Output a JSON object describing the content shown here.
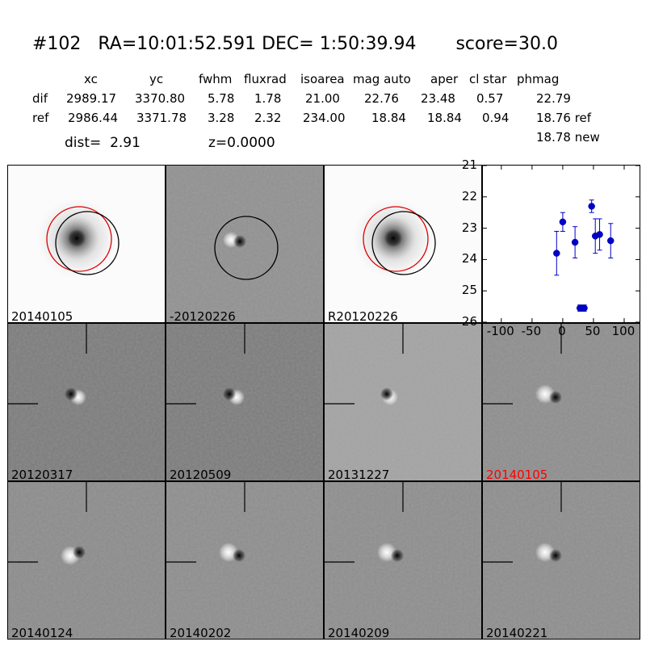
{
  "header": {
    "title": "#102   RA=10:01:52.591 DEC= 1:50:39.94       score=30.0"
  },
  "table": {
    "columns": [
      "xc",
      "yc",
      "fwhm",
      "fluxrad",
      "isoarea",
      "mag auto",
      "aper",
      "cl star",
      "phmag"
    ],
    "rows": [
      {
        "name": "dif",
        "values": [
          "2989.17",
          "3370.80",
          "5.78",
          "1.78",
          "21.00",
          "22.76",
          "23.48",
          "0.57",
          "22.79"
        ]
      },
      {
        "name": "ref",
        "values": [
          "2986.44",
          "3371.78",
          "3.28",
          "2.32",
          "234.00",
          "18.84",
          "18.84",
          "0.94",
          "18.76 ref"
        ]
      }
    ],
    "extra_phmag": "18.78 new"
  },
  "dist_text": "dist=  2.91",
  "z_text": "z=0.0000",
  "tiles": [
    {
      "label": "20140105",
      "style": "ref",
      "color": "#000000"
    },
    {
      "label": "-20120226",
      "style": "diff_circle",
      "color": "#000000"
    },
    {
      "label": "R20120226",
      "style": "ref",
      "color": "#000000"
    },
    {
      "label": "20120317",
      "style": "diff_dark",
      "color": "#000000"
    },
    {
      "label": "20120509",
      "style": "diff_dark",
      "color": "#000000"
    },
    {
      "label": "20131227",
      "style": "diff_light",
      "color": "#000000"
    },
    {
      "label": "20140105",
      "style": "diff_pos",
      "color": "#ff0000"
    },
    {
      "label": "20140124",
      "style": "diff_noisy",
      "color": "#000000"
    },
    {
      "label": "20140202",
      "style": "diff_pos",
      "color": "#000000"
    },
    {
      "label": "20140209",
      "style": "diff_pos",
      "color": "#000000"
    },
    {
      "label": "20140221",
      "style": "diff_pos",
      "color": "#000000"
    }
  ],
  "chart_data": {
    "type": "scatter",
    "title": "",
    "xlabel": "",
    "ylabel": "",
    "xlim": [
      -130,
      125
    ],
    "ylim": [
      26,
      21
    ],
    "inverted_y": true,
    "x_ticks": [
      "-100",
      "-50",
      "0",
      "50",
      "100"
    ],
    "y_ticks": [
      "21",
      "22",
      "23",
      "24",
      "25",
      "26"
    ],
    "marker_color": "#0000cc",
    "points": [
      {
        "x": -10,
        "y": 23.8,
        "err": 0.7
      },
      {
        "x": 0,
        "y": 22.8,
        "err": 0.3
      },
      {
        "x": 20,
        "y": 23.45,
        "err": 0.5
      },
      {
        "x": 28,
        "y": 25.55,
        "err": 0.1
      },
      {
        "x": 35,
        "y": 25.55,
        "err": 0.1
      },
      {
        "x": 47,
        "y": 22.3,
        "err": 0.2
      },
      {
        "x": 53,
        "y": 23.25,
        "err": 0.55
      },
      {
        "x": 60,
        "y": 23.2,
        "err": 0.5
      },
      {
        "x": 78,
        "y": 23.4,
        "err": 0.55
      }
    ]
  }
}
